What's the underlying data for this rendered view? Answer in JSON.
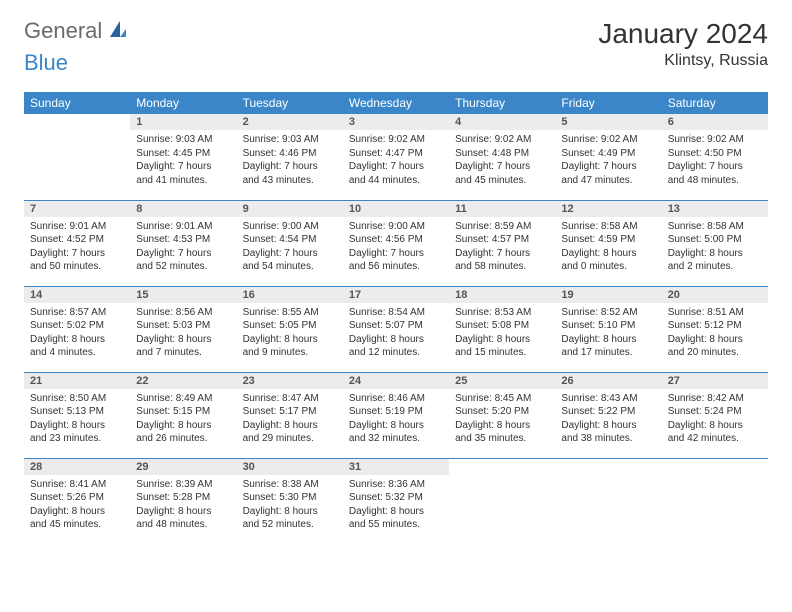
{
  "logo": {
    "text1": "General",
    "text2": "Blue"
  },
  "title": "January 2024",
  "location": "Klintsy, Russia",
  "colors": {
    "accent": "#3a86c8",
    "daynum_bg": "#ececec",
    "logo_gray": "#6b6b6b"
  },
  "weekdays": [
    "Sunday",
    "Monday",
    "Tuesday",
    "Wednesday",
    "Thursday",
    "Friday",
    "Saturday"
  ],
  "weeks": [
    [
      null,
      {
        "n": "1",
        "sunrise": "9:03 AM",
        "sunset": "4:45 PM",
        "dl1": "Daylight: 7 hours",
        "dl2": "and 41 minutes."
      },
      {
        "n": "2",
        "sunrise": "9:03 AM",
        "sunset": "4:46 PM",
        "dl1": "Daylight: 7 hours",
        "dl2": "and 43 minutes."
      },
      {
        "n": "3",
        "sunrise": "9:02 AM",
        "sunset": "4:47 PM",
        "dl1": "Daylight: 7 hours",
        "dl2": "and 44 minutes."
      },
      {
        "n": "4",
        "sunrise": "9:02 AM",
        "sunset": "4:48 PM",
        "dl1": "Daylight: 7 hours",
        "dl2": "and 45 minutes."
      },
      {
        "n": "5",
        "sunrise": "9:02 AM",
        "sunset": "4:49 PM",
        "dl1": "Daylight: 7 hours",
        "dl2": "and 47 minutes."
      },
      {
        "n": "6",
        "sunrise": "9:02 AM",
        "sunset": "4:50 PM",
        "dl1": "Daylight: 7 hours",
        "dl2": "and 48 minutes."
      }
    ],
    [
      {
        "n": "7",
        "sunrise": "9:01 AM",
        "sunset": "4:52 PM",
        "dl1": "Daylight: 7 hours",
        "dl2": "and 50 minutes."
      },
      {
        "n": "8",
        "sunrise": "9:01 AM",
        "sunset": "4:53 PM",
        "dl1": "Daylight: 7 hours",
        "dl2": "and 52 minutes."
      },
      {
        "n": "9",
        "sunrise": "9:00 AM",
        "sunset": "4:54 PM",
        "dl1": "Daylight: 7 hours",
        "dl2": "and 54 minutes."
      },
      {
        "n": "10",
        "sunrise": "9:00 AM",
        "sunset": "4:56 PM",
        "dl1": "Daylight: 7 hours",
        "dl2": "and 56 minutes."
      },
      {
        "n": "11",
        "sunrise": "8:59 AM",
        "sunset": "4:57 PM",
        "dl1": "Daylight: 7 hours",
        "dl2": "and 58 minutes."
      },
      {
        "n": "12",
        "sunrise": "8:58 AM",
        "sunset": "4:59 PM",
        "dl1": "Daylight: 8 hours",
        "dl2": "and 0 minutes."
      },
      {
        "n": "13",
        "sunrise": "8:58 AM",
        "sunset": "5:00 PM",
        "dl1": "Daylight: 8 hours",
        "dl2": "and 2 minutes."
      }
    ],
    [
      {
        "n": "14",
        "sunrise": "8:57 AM",
        "sunset": "5:02 PM",
        "dl1": "Daylight: 8 hours",
        "dl2": "and 4 minutes."
      },
      {
        "n": "15",
        "sunrise": "8:56 AM",
        "sunset": "5:03 PM",
        "dl1": "Daylight: 8 hours",
        "dl2": "and 7 minutes."
      },
      {
        "n": "16",
        "sunrise": "8:55 AM",
        "sunset": "5:05 PM",
        "dl1": "Daylight: 8 hours",
        "dl2": "and 9 minutes."
      },
      {
        "n": "17",
        "sunrise": "8:54 AM",
        "sunset": "5:07 PM",
        "dl1": "Daylight: 8 hours",
        "dl2": "and 12 minutes."
      },
      {
        "n": "18",
        "sunrise": "8:53 AM",
        "sunset": "5:08 PM",
        "dl1": "Daylight: 8 hours",
        "dl2": "and 15 minutes."
      },
      {
        "n": "19",
        "sunrise": "8:52 AM",
        "sunset": "5:10 PM",
        "dl1": "Daylight: 8 hours",
        "dl2": "and 17 minutes."
      },
      {
        "n": "20",
        "sunrise": "8:51 AM",
        "sunset": "5:12 PM",
        "dl1": "Daylight: 8 hours",
        "dl2": "and 20 minutes."
      }
    ],
    [
      {
        "n": "21",
        "sunrise": "8:50 AM",
        "sunset": "5:13 PM",
        "dl1": "Daylight: 8 hours",
        "dl2": "and 23 minutes."
      },
      {
        "n": "22",
        "sunrise": "8:49 AM",
        "sunset": "5:15 PM",
        "dl1": "Daylight: 8 hours",
        "dl2": "and 26 minutes."
      },
      {
        "n": "23",
        "sunrise": "8:47 AM",
        "sunset": "5:17 PM",
        "dl1": "Daylight: 8 hours",
        "dl2": "and 29 minutes."
      },
      {
        "n": "24",
        "sunrise": "8:46 AM",
        "sunset": "5:19 PM",
        "dl1": "Daylight: 8 hours",
        "dl2": "and 32 minutes."
      },
      {
        "n": "25",
        "sunrise": "8:45 AM",
        "sunset": "5:20 PM",
        "dl1": "Daylight: 8 hours",
        "dl2": "and 35 minutes."
      },
      {
        "n": "26",
        "sunrise": "8:43 AM",
        "sunset": "5:22 PM",
        "dl1": "Daylight: 8 hours",
        "dl2": "and 38 minutes."
      },
      {
        "n": "27",
        "sunrise": "8:42 AM",
        "sunset": "5:24 PM",
        "dl1": "Daylight: 8 hours",
        "dl2": "and 42 minutes."
      }
    ],
    [
      {
        "n": "28",
        "sunrise": "8:41 AM",
        "sunset": "5:26 PM",
        "dl1": "Daylight: 8 hours",
        "dl2": "and 45 minutes."
      },
      {
        "n": "29",
        "sunrise": "8:39 AM",
        "sunset": "5:28 PM",
        "dl1": "Daylight: 8 hours",
        "dl2": "and 48 minutes."
      },
      {
        "n": "30",
        "sunrise": "8:38 AM",
        "sunset": "5:30 PM",
        "dl1": "Daylight: 8 hours",
        "dl2": "and 52 minutes."
      },
      {
        "n": "31",
        "sunrise": "8:36 AM",
        "sunset": "5:32 PM",
        "dl1": "Daylight: 8 hours",
        "dl2": "and 55 minutes."
      },
      null,
      null,
      null
    ]
  ]
}
